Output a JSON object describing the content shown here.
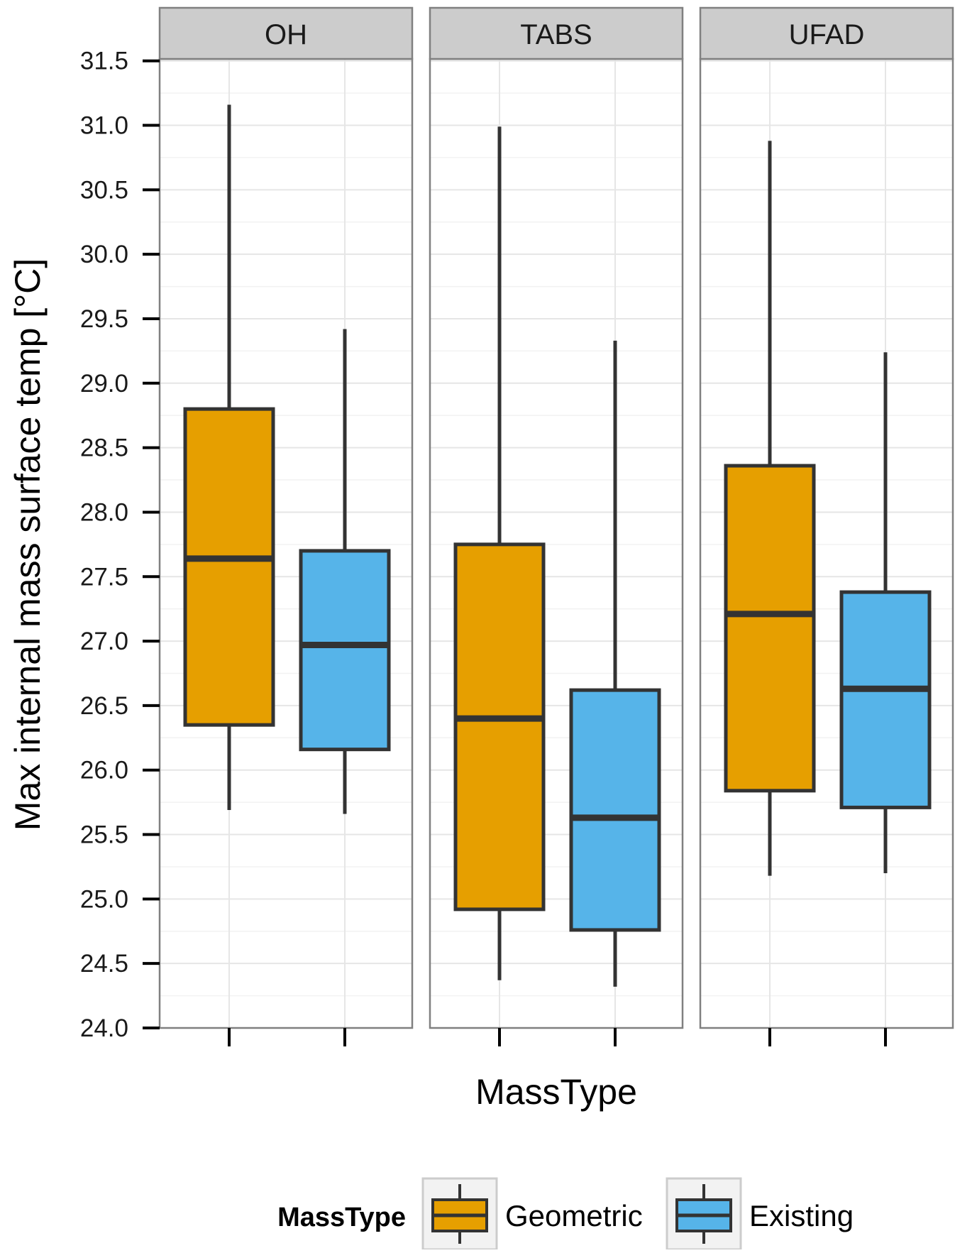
{
  "chart_data": {
    "type": "boxplot",
    "facet_variable": "",
    "facets": [
      "OH",
      "TABS",
      "UFAD"
    ],
    "categories": [
      "Geometric",
      "Existing"
    ],
    "xlabel": "MassType",
    "ylabel": "Max internal mass surface temp [°C]",
    "ylim": [
      24.0,
      31.5
    ],
    "y_ticks": [
      "24.0",
      "24.5",
      "25.0",
      "25.5",
      "26.0",
      "26.5",
      "27.0",
      "27.5",
      "28.0",
      "28.5",
      "29.0",
      "29.5",
      "30.0",
      "30.5",
      "31.0",
      "31.5"
    ],
    "grid": true,
    "legend": {
      "title": "MassType",
      "position": "bottom",
      "entries": [
        {
          "label": "Geometric",
          "color": "#E69F00"
        },
        {
          "label": "Existing",
          "color": "#56B4E9"
        }
      ]
    },
    "series": [
      {
        "facet": "OH",
        "name": "Geometric",
        "whisker_low": 25.69,
        "q1": 26.35,
        "median": 27.64,
        "q3": 28.8,
        "whisker_high": 31.16
      },
      {
        "facet": "OH",
        "name": "Existing",
        "whisker_low": 25.66,
        "q1": 26.16,
        "median": 26.97,
        "q3": 27.7,
        "whisker_high": 29.42
      },
      {
        "facet": "TABS",
        "name": "Geometric",
        "whisker_low": 24.37,
        "q1": 24.92,
        "median": 26.4,
        "q3": 27.75,
        "whisker_high": 30.99
      },
      {
        "facet": "TABS",
        "name": "Existing",
        "whisker_low": 24.32,
        "q1": 24.76,
        "median": 25.63,
        "q3": 26.62,
        "whisker_high": 29.33
      },
      {
        "facet": "UFAD",
        "name": "Geometric",
        "whisker_low": 25.18,
        "q1": 25.84,
        "median": 27.21,
        "q3": 28.36,
        "whisker_high": 30.88
      },
      {
        "facet": "UFAD",
        "name": "Existing",
        "whisker_low": 25.2,
        "q1": 25.71,
        "median": 26.63,
        "q3": 27.38,
        "whisker_high": 29.24
      }
    ]
  },
  "colors": {
    "geometric": "#E69F00",
    "existing": "#56B4E9",
    "outline": "#333333",
    "strip_bg": "#CCCCCC",
    "panel_border": "#808080",
    "grid_major": "#E6E6E6",
    "grid_minor": "#F2F2F2"
  }
}
